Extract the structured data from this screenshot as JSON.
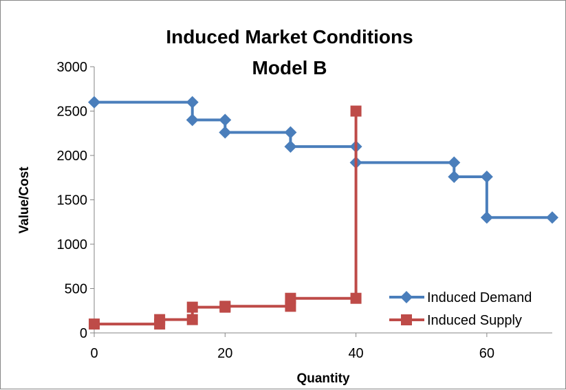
{
  "chart_data": {
    "type": "line",
    "title": [
      "Induced Market Conditions",
      "Model B"
    ],
    "xlabel": "Quantity",
    "ylabel": "Value/Cost",
    "xlim": [
      0,
      70
    ],
    "ylim": [
      0,
      3000
    ],
    "x_ticks": [
      0,
      20,
      40,
      60
    ],
    "y_ticks": [
      0,
      500,
      1000,
      1500,
      2000,
      2500,
      3000
    ],
    "grid": false,
    "legend_position": "bottom-right",
    "series": [
      {
        "name": "Induced Demand",
        "color": "#4a7ebb",
        "marker": "diamond",
        "points": [
          [
            0,
            2600
          ],
          [
            15,
            2600
          ],
          [
            15,
            2400
          ],
          [
            20,
            2400
          ],
          [
            20,
            2260
          ],
          [
            30,
            2260
          ],
          [
            30,
            2100
          ],
          [
            40,
            2100
          ],
          [
            40,
            1920
          ],
          [
            55,
            1920
          ],
          [
            55,
            1760
          ],
          [
            60,
            1760
          ],
          [
            60,
            1300
          ],
          [
            70,
            1300
          ]
        ]
      },
      {
        "name": "Induced Supply",
        "color": "#be4b48",
        "marker": "square",
        "points": [
          [
            0,
            100
          ],
          [
            10,
            100
          ],
          [
            10,
            150
          ],
          [
            15,
            150
          ],
          [
            15,
            290
          ],
          [
            20,
            290
          ],
          [
            20,
            300
          ],
          [
            30,
            300
          ],
          [
            30,
            390
          ],
          [
            40,
            390
          ],
          [
            40,
            2500
          ]
        ]
      }
    ]
  }
}
